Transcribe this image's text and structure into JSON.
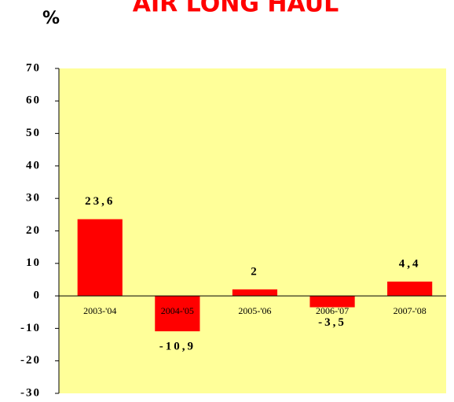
{
  "chart_data": {
    "type": "bar",
    "title": "AIR LONG HAUL",
    "y_label": "%",
    "categories": [
      "2003-'04",
      "2004-'05",
      "2005-'06",
      "2006-'07",
      "2007-'08"
    ],
    "values": [
      23.6,
      -10.9,
      2,
      -3.5,
      4.4
    ],
    "value_labels": [
      "23,6",
      "-10,9",
      "2",
      "-3,5",
      "4,4"
    ],
    "color": "#ff0000",
    "background": "#ffff99",
    "ylim": [
      -30,
      70
    ],
    "yticks": [
      -30,
      -20,
      -10,
      0,
      10,
      20,
      30,
      40,
      50,
      60,
      70
    ]
  }
}
